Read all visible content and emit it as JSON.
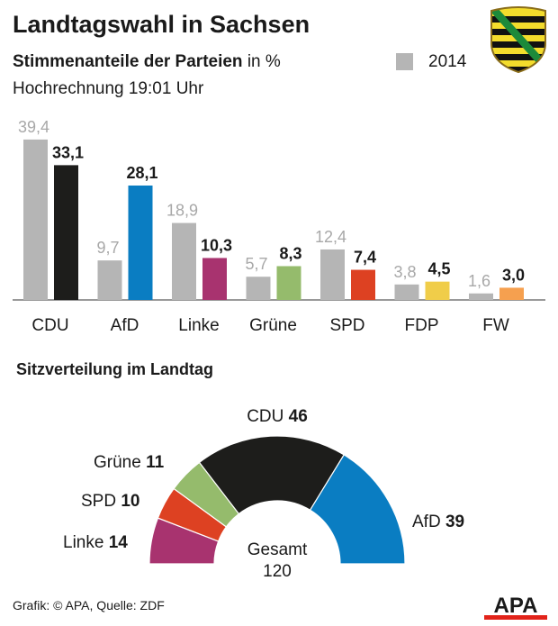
{
  "header": {
    "title": "Landtagswahl in Sachsen",
    "subtitle_bold": "Stimmenanteile der Parteien",
    "subtitle_rest": " in %",
    "time": "Hochrechnung 19:01 Uhr",
    "legend_2014": "2014"
  },
  "colors": {
    "prev": "#b5b5b5"
  },
  "chart_data": [
    {
      "type": "bar",
      "title": "Stimmenanteile der Parteien in %",
      "subtitle": "Hochrechnung 19:01 Uhr",
      "categories": [
        "CDU",
        "AfD",
        "Linke",
        "Grüne",
        "SPD",
        "FDP",
        "FW"
      ],
      "series": [
        {
          "name": "2014",
          "values": [
            39.4,
            9.7,
            18.9,
            5.7,
            12.4,
            3.8,
            1.6
          ],
          "labels": [
            "39,4",
            "9,7",
            "18,9",
            "5,7",
            "12,4",
            "3,8",
            "1,6"
          ]
        },
        {
          "name": "Hochrechnung",
          "values": [
            33.1,
            28.1,
            10.3,
            8.3,
            7.4,
            4.5,
            3.0
          ],
          "labels": [
            "33,1",
            "28,1",
            "10,3",
            "8,3",
            "7,4",
            "4,5",
            "3,0"
          ],
          "colors": [
            "#1d1d1b",
            "#0a7dc2",
            "#a8336f",
            "#95bb6c",
            "#dd4122",
            "#f0cd49",
            "#f6a04f"
          ]
        }
      ],
      "ylim": [
        0,
        40
      ]
    },
    {
      "type": "pie",
      "title": "Sitzverteilung im Landtag",
      "form": "semicircle",
      "slices": [
        {
          "name": "Linke",
          "value": 14,
          "color": "#a8336f"
        },
        {
          "name": "SPD",
          "value": 10,
          "color": "#dd4122"
        },
        {
          "name": "Grüne",
          "value": 11,
          "color": "#95bb6c"
        },
        {
          "name": "CDU",
          "value": 46,
          "color": "#1d1d1b"
        },
        {
          "name": "AfD",
          "value": 39,
          "color": "#0a7dc2"
        }
      ],
      "total_label": "Gesamt",
      "total": "120"
    }
  ],
  "seats_title": "Sitzverteilung im Landtag",
  "footer": {
    "source": "Grafik: © APA, Quelle: ZDF",
    "logo": "APA"
  }
}
